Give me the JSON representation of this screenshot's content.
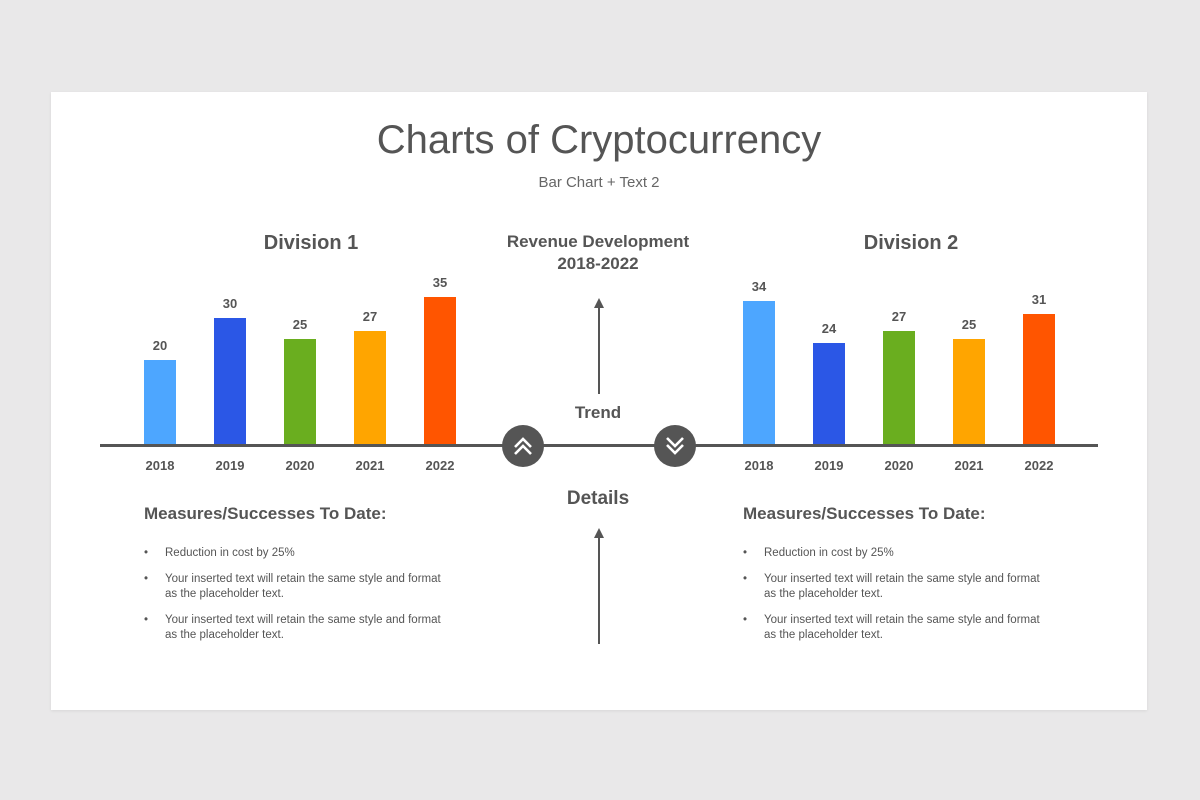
{
  "title": "Charts of Cryptocurrency",
  "subtitle": "Bar Chart + Text 2",
  "center": {
    "revenue_line1": "Revenue Development",
    "revenue_line2": "2018-2022",
    "trend": "Trend",
    "details": "Details"
  },
  "icons": {
    "up": "double-chevron-up-icon",
    "down": "double-chevron-down-icon"
  },
  "colors": [
    "#4da6ff",
    "#2b57e6",
    "#6aae1f",
    "#ffa500",
    "#ff5500"
  ],
  "chart_data": [
    {
      "type": "bar",
      "title": "Division 1",
      "categories": [
        "2018",
        "2019",
        "2020",
        "2021",
        "2022"
      ],
      "values": [
        20,
        30,
        25,
        27,
        35
      ]
    },
    {
      "type": "bar",
      "title": "Division 2",
      "categories": [
        "2018",
        "2019",
        "2020",
        "2021",
        "2022"
      ],
      "values": [
        34,
        24,
        27,
        25,
        31
      ]
    }
  ],
  "left_panel": {
    "heading": "Measures/Successes To Date:",
    "bullets": [
      "Reduction in cost by 25%",
      "Your inserted text will retain the same style and format as the placeholder text.",
      "Your inserted text will retain the same style and format as the placeholder text."
    ]
  },
  "right_panel": {
    "heading": "Measures/Successes To Date:",
    "bullets": [
      "Reduction in cost by 25%",
      "Your inserted text will retain the same style and format as the placeholder text.",
      "Your inserted text will retain the same style and format as the placeholder text."
    ]
  }
}
